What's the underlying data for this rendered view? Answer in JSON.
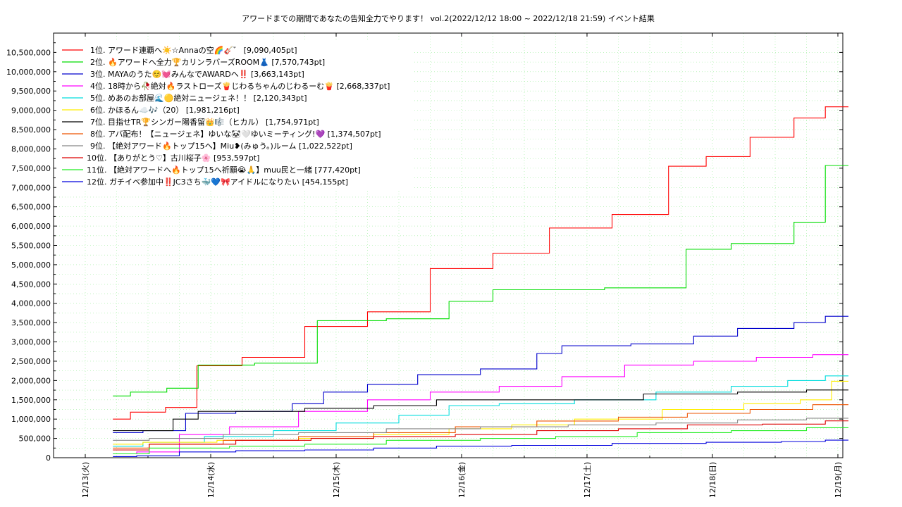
{
  "chart_data": {
    "type": "line",
    "title": "アワードまでの期間であなたの告知全力でやります！ vol.2(2022/12/12 18:00 ~ 2022/12/18 21:59)          イベント結果",
    "xlabel": "",
    "ylabel": "",
    "ylim": [
      0,
      11000000
    ],
    "xlim": [
      "2022-12-13 00:00",
      "2022-12-19 00:00"
    ],
    "grid": true,
    "legend_position": "top-left",
    "y_ticks": [
      "0",
      "500,000",
      "1,000,000",
      "1,500,000",
      "2,000,000",
      "2,500,000",
      "3,000,000",
      "3,500,000",
      "4,000,000",
      "4,500,000",
      "5,000,000",
      "5,500,000",
      "6,000,000",
      "6,500,000",
      "7,000,000",
      "7,500,000",
      "8,000,000",
      "8,500,000",
      "9,000,000",
      "9,500,000",
      "10,000,000",
      "10,500,000"
    ],
    "x_ticks": [
      "12/13(火)",
      "12/14(水)",
      "12/15(木)",
      "12/16(金)",
      "12/17(土)",
      "12/18(日)",
      "12/19(月)"
    ],
    "series": [
      {
        "legend": "1位. アワード連覇へ☀️☆Annaの空🌈🎸゛ [9,090,405pt]",
        "color": "#ff0000",
        "points": [
          [
            1.22,
            1000000
          ],
          [
            1.5,
            1180000
          ],
          [
            1.78,
            1300000
          ],
          [
            2.0,
            2380000
          ],
          [
            2.5,
            2600000
          ],
          [
            3.0,
            3400000
          ],
          [
            3.5,
            3780000
          ],
          [
            4.0,
            4900000
          ],
          [
            4.5,
            5300000
          ],
          [
            4.9,
            5950000
          ],
          [
            5.5,
            6300000
          ],
          [
            5.8,
            7550000
          ],
          [
            6.1,
            7800000
          ],
          [
            6.5,
            8300000
          ],
          [
            6.8,
            8800000
          ],
          [
            7.0,
            9090405
          ]
        ]
      },
      {
        "legend": "2位. 🔥アワードへ全力🏆カリンラバーズROOM👗 [7,570,743pt]",
        "color": "#00dd00",
        "points": [
          [
            1.22,
            1600000
          ],
          [
            1.5,
            1700000
          ],
          [
            1.8,
            1800000
          ],
          [
            2.0,
            2400000
          ],
          [
            2.7,
            2450000
          ],
          [
            3.0,
            3550000
          ],
          [
            3.8,
            3600000
          ],
          [
            4.0,
            4050000
          ],
          [
            4.5,
            4350000
          ],
          [
            5.78,
            4400000
          ],
          [
            5.8,
            5400000
          ],
          [
            6.5,
            5550000
          ],
          [
            6.8,
            6100000
          ],
          [
            7.0,
            7570743
          ]
        ]
      },
      {
        "legend": "3位. MAYAのうた☺️💓みんなでAWARDへ‼️ [3,663,143pt]",
        "color": "#0000cc",
        "points": [
          [
            1.22,
            650000
          ],
          [
            1.7,
            700000
          ],
          [
            1.9,
            1150000
          ],
          [
            2.5,
            1200000
          ],
          [
            2.8,
            1400000
          ],
          [
            3.0,
            1700000
          ],
          [
            3.5,
            1900000
          ],
          [
            3.8,
            2150000
          ],
          [
            4.5,
            2300000
          ],
          [
            4.7,
            2700000
          ],
          [
            4.9,
            2900000
          ],
          [
            5.8,
            2950000
          ],
          [
            5.9,
            3150000
          ],
          [
            6.5,
            3350000
          ],
          [
            6.8,
            3500000
          ],
          [
            7.0,
            3663143
          ]
        ]
      },
      {
        "legend": "4位. 18時から🥀絶対🔥ラストローズ🍟じわるちゃんのじわるーむ🍟 [2,668,337pt]",
        "color": "#ff00ff",
        "points": [
          [
            1.22,
            100000
          ],
          [
            1.6,
            150000
          ],
          [
            1.9,
            600000
          ],
          [
            2.4,
            800000
          ],
          [
            3.0,
            1200000
          ],
          [
            3.5,
            1500000
          ],
          [
            4.0,
            1700000
          ],
          [
            4.6,
            1850000
          ],
          [
            5.0,
            2100000
          ],
          [
            5.6,
            2400000
          ],
          [
            6.1,
            2500000
          ],
          [
            6.6,
            2600000
          ],
          [
            7.0,
            2668337
          ]
        ]
      },
      {
        "legend": "5位. めあのお部屋🌊🟡絶対ニュージェネ！！ [2,120,343pt]",
        "color": "#00dddd",
        "points": [
          [
            1.22,
            300000
          ],
          [
            1.7,
            400000
          ],
          [
            2.2,
            550000
          ],
          [
            2.8,
            700000
          ],
          [
            3.2,
            900000
          ],
          [
            3.8,
            1100000
          ],
          [
            4.0,
            1350000
          ],
          [
            4.6,
            1400000
          ],
          [
            5.2,
            1500000
          ],
          [
            5.9,
            1700000
          ],
          [
            6.4,
            1850000
          ],
          [
            6.8,
            2000000
          ],
          [
            7.0,
            2120343
          ]
        ]
      },
      {
        "legend": "6位. かほるん☁️🎶（20） [1,981,216pt]",
        "color": "#ffee00",
        "points": [
          [
            1.22,
            350000
          ],
          [
            1.7,
            400000
          ],
          [
            2.4,
            450000
          ],
          [
            3.0,
            500000
          ],
          [
            3.6,
            600000
          ],
          [
            4.2,
            750000
          ],
          [
            4.6,
            850000
          ],
          [
            5.2,
            1000000
          ],
          [
            6.0,
            1250000
          ],
          [
            6.5,
            1400000
          ],
          [
            6.9,
            1500000
          ],
          [
            7.0,
            1981216
          ]
        ]
      },
      {
        "legend": "7位. 目指せTR🏆シンガー陽香留👑🎼（ヒカル） [1,754,971pt]",
        "color": "#000000",
        "points": [
          [
            1.22,
            700000
          ],
          [
            1.6,
            700000
          ],
          [
            1.8,
            1000000
          ],
          [
            2.0,
            1200000
          ],
          [
            2.5,
            1200000
          ],
          [
            3.0,
            1280000
          ],
          [
            3.6,
            1350000
          ],
          [
            4.0,
            1500000
          ],
          [
            5.0,
            1500000
          ],
          [
            5.9,
            1650000
          ],
          [
            6.5,
            1700000
          ],
          [
            7.0,
            1754971
          ]
        ]
      },
      {
        "legend": "8位. アバ配布！【ニュージェネ】ゆいな🐼🤍ゆいミーティング!💜 [1,374,507pt]",
        "color": "#ee5500",
        "points": [
          [
            1.22,
            250000
          ],
          [
            1.8,
            350000
          ],
          [
            2.4,
            450000
          ],
          [
            3.0,
            550000
          ],
          [
            3.6,
            650000
          ],
          [
            4.3,
            800000
          ],
          [
            4.9,
            950000
          ],
          [
            5.6,
            1050000
          ],
          [
            6.0,
            1150000
          ],
          [
            6.6,
            1250000
          ],
          [
            7.0,
            1374507
          ]
        ]
      },
      {
        "legend": "9位. 【絶対アワード🔥トップ15へ】Miu❥(みゅう。)ルーム [1,022,522pt]",
        "color": "#888888",
        "points": [
          [
            1.22,
            450000
          ],
          [
            1.8,
            500000
          ],
          [
            2.4,
            600000
          ],
          [
            3.0,
            650000
          ],
          [
            3.8,
            750000
          ],
          [
            4.5,
            800000
          ],
          [
            5.2,
            850000
          ],
          [
            5.9,
            900000
          ],
          [
            6.5,
            980000
          ],
          [
            7.0,
            1022522
          ]
        ]
      },
      {
        "legend": "10位. 【ありがとう♡】古川桜子🌸 [953,597pt]",
        "color": "#dd0000",
        "points": [
          [
            1.22,
            200000
          ],
          [
            1.8,
            350000
          ],
          [
            2.6,
            450000
          ],
          [
            3.0,
            500000
          ],
          [
            3.6,
            550000
          ],
          [
            4.3,
            600000
          ],
          [
            4.9,
            700000
          ],
          [
            5.6,
            750000
          ],
          [
            6.0,
            850000
          ],
          [
            6.8,
            870000
          ],
          [
            7.0,
            953597
          ]
        ]
      },
      {
        "legend": "11位. 【絶対アワードへ🔥トップ15へ祈願😭🙏】muu民と一緒 [777,420pt]",
        "color": "#22ee22",
        "points": [
          [
            1.22,
            100000
          ],
          [
            1.8,
            250000
          ],
          [
            2.5,
            300000
          ],
          [
            3.0,
            350000
          ],
          [
            3.8,
            450000
          ],
          [
            4.5,
            500000
          ],
          [
            5.0,
            550000
          ],
          [
            5.8,
            650000
          ],
          [
            6.5,
            700000
          ],
          [
            7.0,
            777420
          ]
        ]
      },
      {
        "legend": "12位. ガチイベ参加中‼️JC3さち🐳💙🎀アイドルになりたい [454,155pt]",
        "color": "#0000dd",
        "points": [
          [
            1.22,
            30000
          ],
          [
            1.6,
            50000
          ],
          [
            1.9,
            150000
          ],
          [
            2.5,
            180000
          ],
          [
            3.0,
            200000
          ],
          [
            3.6,
            250000
          ],
          [
            4.0,
            300000
          ],
          [
            4.8,
            320000
          ],
          [
            5.6,
            370000
          ],
          [
            6.3,
            400000
          ],
          [
            6.8,
            420000
          ],
          [
            7.0,
            454155
          ]
        ]
      }
    ]
  }
}
